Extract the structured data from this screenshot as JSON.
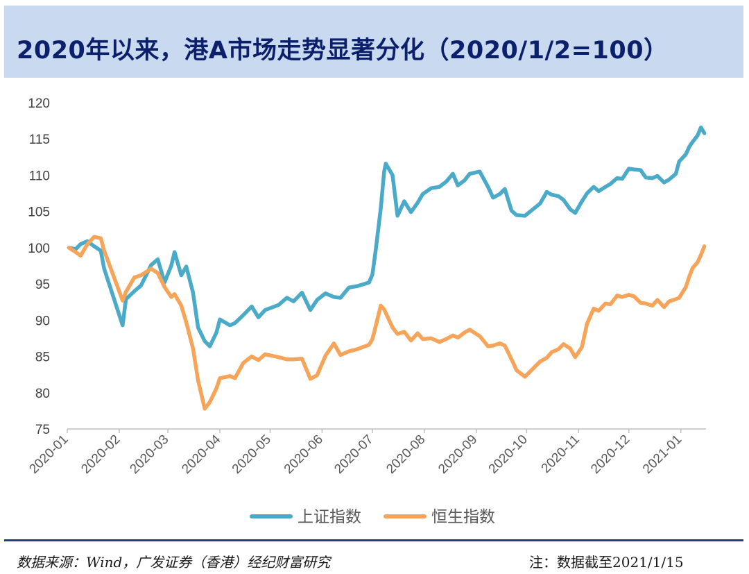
{
  "title": "2020年以来，港A市场走势显著分化（2020/1/2=100）",
  "footer": {
    "source": "数据来源：Wind，广发证券（香港）经纪财富研究",
    "note": "注：数据截至2021/1/15"
  },
  "colors": {
    "sse": "#4aaac8",
    "hsi": "#f6a45a",
    "title_bg": "#c9d9ef",
    "title_text": "#0b1f6b"
  },
  "chart_data": {
    "type": "line",
    "title": "",
    "xlabel": "",
    "ylabel": "",
    "ylim": [
      75,
      120
    ],
    "yticks": [
      "75",
      "80",
      "85",
      "90",
      "95",
      "100",
      "105",
      "110",
      "115",
      "120"
    ],
    "xlim": [
      "2020-01-01",
      "2021-01-16"
    ],
    "xticks": [
      "2020-01",
      "2020-02",
      "2020-03",
      "2020-04",
      "2020-05",
      "2020-06",
      "2020-07",
      "2020-08",
      "2020-09",
      "2020-10",
      "2020-11",
      "2020-12",
      "2021-01"
    ],
    "legend": "bottom",
    "series": [
      {
        "name": "上证指数",
        "color": "#4aaac8",
        "points": [
          [
            "2020-01-02",
            100.0
          ],
          [
            "2020-01-06",
            99.8
          ],
          [
            "2020-01-09",
            100.5
          ],
          [
            "2020-01-13",
            100.9
          ],
          [
            "2020-01-17",
            100.2
          ],
          [
            "2020-01-21",
            99.6
          ],
          [
            "2020-01-23",
            97.1
          ],
          [
            "2020-02-03",
            89.3
          ],
          [
            "2020-02-05",
            92.9
          ],
          [
            "2020-02-10",
            94.0
          ],
          [
            "2020-02-14",
            94.8
          ],
          [
            "2020-02-20",
            97.6
          ],
          [
            "2020-02-24",
            98.4
          ],
          [
            "2020-02-28",
            95.2
          ],
          [
            "2020-03-03",
            97.5
          ],
          [
            "2020-03-05",
            99.4
          ],
          [
            "2020-03-09",
            96.2
          ],
          [
            "2020-03-12",
            97.4
          ],
          [
            "2020-03-16",
            93.8
          ],
          [
            "2020-03-19",
            89.0
          ],
          [
            "2020-03-23",
            87.1
          ],
          [
            "2020-03-26",
            86.4
          ],
          [
            "2020-03-30",
            88.3
          ],
          [
            "2020-04-01",
            90.1
          ],
          [
            "2020-04-07",
            89.3
          ],
          [
            "2020-04-10",
            89.6
          ],
          [
            "2020-04-15",
            90.7
          ],
          [
            "2020-04-20",
            91.9
          ],
          [
            "2020-04-24",
            90.4
          ],
          [
            "2020-04-28",
            91.4
          ],
          [
            "2020-05-06",
            92.1
          ],
          [
            "2020-05-11",
            93.1
          ],
          [
            "2020-05-15",
            92.6
          ],
          [
            "2020-05-20",
            93.8
          ],
          [
            "2020-05-25",
            91.4
          ],
          [
            "2020-05-29",
            92.8
          ],
          [
            "2020-06-03",
            93.7
          ],
          [
            "2020-06-08",
            93.2
          ],
          [
            "2020-06-12",
            93.1
          ],
          [
            "2020-06-17",
            94.5
          ],
          [
            "2020-06-22",
            94.7
          ],
          [
            "2020-06-29",
            95.2
          ],
          [
            "2020-07-01",
            96.3
          ],
          [
            "2020-07-03",
            99.7
          ],
          [
            "2020-07-06",
            105.4
          ],
          [
            "2020-07-08",
            110.5
          ],
          [
            "2020-07-09",
            111.6
          ],
          [
            "2020-07-13",
            110.0
          ],
          [
            "2020-07-16",
            104.4
          ],
          [
            "2020-07-20",
            106.4
          ],
          [
            "2020-07-24",
            104.9
          ],
          [
            "2020-07-28",
            106.2
          ],
          [
            "2020-07-31",
            107.4
          ],
          [
            "2020-08-05",
            108.2
          ],
          [
            "2020-08-10",
            108.4
          ],
          [
            "2020-08-14",
            109.1
          ],
          [
            "2020-08-18",
            110.2
          ],
          [
            "2020-08-21",
            108.6
          ],
          [
            "2020-08-25",
            109.3
          ],
          [
            "2020-08-28",
            110.2
          ],
          [
            "2020-09-03",
            110.5
          ],
          [
            "2020-09-08",
            108.4
          ],
          [
            "2020-09-11",
            106.9
          ],
          [
            "2020-09-15",
            107.4
          ],
          [
            "2020-09-18",
            108.1
          ],
          [
            "2020-09-22",
            105.1
          ],
          [
            "2020-09-25",
            104.5
          ],
          [
            "2020-09-30",
            104.4
          ],
          [
            "2020-10-09",
            106.1
          ],
          [
            "2020-10-13",
            107.7
          ],
          [
            "2020-10-16",
            107.3
          ],
          [
            "2020-10-20",
            107.1
          ],
          [
            "2020-10-23",
            106.6
          ],
          [
            "2020-10-27",
            105.3
          ],
          [
            "2020-10-30",
            104.8
          ],
          [
            "2020-11-03",
            106.4
          ],
          [
            "2020-11-06",
            107.5
          ],
          [
            "2020-11-10",
            108.4
          ],
          [
            "2020-11-13",
            107.8
          ],
          [
            "2020-11-17",
            108.4
          ],
          [
            "2020-11-20",
            108.8
          ],
          [
            "2020-11-24",
            109.6
          ],
          [
            "2020-11-27",
            109.5
          ],
          [
            "2020-12-01",
            110.9
          ],
          [
            "2020-12-04",
            110.8
          ],
          [
            "2020-12-08",
            110.7
          ],
          [
            "2020-12-11",
            109.7
          ],
          [
            "2020-12-15",
            109.6
          ],
          [
            "2020-12-18",
            109.9
          ],
          [
            "2020-12-22",
            109.0
          ],
          [
            "2020-12-25",
            109.4
          ],
          [
            "2020-12-29",
            110.2
          ],
          [
            "2020-12-31",
            111.9
          ],
          [
            "2021-01-04",
            112.9
          ],
          [
            "2021-01-06",
            113.9
          ],
          [
            "2021-01-08",
            114.6
          ],
          [
            "2021-01-11",
            115.5
          ],
          [
            "2021-01-13",
            116.6
          ],
          [
            "2021-01-15",
            115.8
          ]
        ]
      },
      {
        "name": "恒生指数",
        "color": "#f6a45a",
        "points": [
          [
            "2020-01-02",
            100.0
          ],
          [
            "2020-01-06",
            99.4
          ],
          [
            "2020-01-09",
            98.9
          ],
          [
            "2020-01-13",
            100.5
          ],
          [
            "2020-01-17",
            101.5
          ],
          [
            "2020-01-21",
            101.3
          ],
          [
            "2020-01-23",
            99.6
          ],
          [
            "2020-02-03",
            92.7
          ],
          [
            "2020-02-05",
            93.9
          ],
          [
            "2020-02-10",
            95.9
          ],
          [
            "2020-02-14",
            96.2
          ],
          [
            "2020-02-20",
            97.1
          ],
          [
            "2020-02-24",
            96.5
          ],
          [
            "2020-02-28",
            94.6
          ],
          [
            "2020-03-03",
            93.2
          ],
          [
            "2020-03-05",
            93.6
          ],
          [
            "2020-03-09",
            92.0
          ],
          [
            "2020-03-12",
            89.7
          ],
          [
            "2020-03-16",
            86.1
          ],
          [
            "2020-03-19",
            81.7
          ],
          [
            "2020-03-23",
            77.8
          ],
          [
            "2020-03-26",
            78.7
          ],
          [
            "2020-03-30",
            80.6
          ],
          [
            "2020-04-01",
            82.0
          ],
          [
            "2020-04-07",
            82.3
          ],
          [
            "2020-04-10",
            82.0
          ],
          [
            "2020-04-15",
            84.1
          ],
          [
            "2020-04-20",
            85.0
          ],
          [
            "2020-04-24",
            84.5
          ],
          [
            "2020-04-28",
            85.3
          ],
          [
            "2020-05-06",
            84.9
          ],
          [
            "2020-05-11",
            84.6
          ],
          [
            "2020-05-15",
            84.6
          ],
          [
            "2020-05-20",
            84.7
          ],
          [
            "2020-05-25",
            81.9
          ],
          [
            "2020-05-29",
            82.4
          ],
          [
            "2020-06-03",
            85.1
          ],
          [
            "2020-06-08",
            86.8
          ],
          [
            "2020-06-12",
            85.2
          ],
          [
            "2020-06-17",
            85.7
          ],
          [
            "2020-06-22",
            86.0
          ],
          [
            "2020-06-29",
            86.6
          ],
          [
            "2020-07-01",
            87.4
          ],
          [
            "2020-07-03",
            89.2
          ],
          [
            "2020-07-06",
            92.0
          ],
          [
            "2020-07-08",
            91.5
          ],
          [
            "2020-07-09",
            91.0
          ],
          [
            "2020-07-13",
            89.0
          ],
          [
            "2020-07-16",
            88.1
          ],
          [
            "2020-07-20",
            88.4
          ],
          [
            "2020-07-24",
            87.2
          ],
          [
            "2020-07-28",
            88.2
          ],
          [
            "2020-07-31",
            87.4
          ],
          [
            "2020-08-05",
            87.5
          ],
          [
            "2020-08-10",
            87.0
          ],
          [
            "2020-08-14",
            87.4
          ],
          [
            "2020-08-18",
            87.9
          ],
          [
            "2020-08-21",
            87.6
          ],
          [
            "2020-08-25",
            88.3
          ],
          [
            "2020-08-28",
            88.7
          ],
          [
            "2020-09-03",
            87.8
          ],
          [
            "2020-09-08",
            86.4
          ],
          [
            "2020-09-11",
            86.5
          ],
          [
            "2020-09-15",
            86.8
          ],
          [
            "2020-09-18",
            86.5
          ],
          [
            "2020-09-22",
            84.6
          ],
          [
            "2020-09-25",
            83.1
          ],
          [
            "2020-09-30",
            82.2
          ],
          [
            "2020-10-09",
            84.3
          ],
          [
            "2020-10-13",
            84.8
          ],
          [
            "2020-10-16",
            85.6
          ],
          [
            "2020-10-20",
            86.0
          ],
          [
            "2020-10-23",
            86.7
          ],
          [
            "2020-10-27",
            86.1
          ],
          [
            "2020-10-30",
            84.9
          ],
          [
            "2020-11-03",
            86.3
          ],
          [
            "2020-11-06",
            89.5
          ],
          [
            "2020-11-10",
            91.6
          ],
          [
            "2020-11-13",
            91.3
          ],
          [
            "2020-11-17",
            92.3
          ],
          [
            "2020-11-20",
            92.2
          ],
          [
            "2020-11-24",
            93.4
          ],
          [
            "2020-11-27",
            93.2
          ],
          [
            "2020-12-01",
            93.5
          ],
          [
            "2020-12-04",
            93.3
          ],
          [
            "2020-12-08",
            92.4
          ],
          [
            "2020-12-11",
            92.3
          ],
          [
            "2020-12-15",
            92.0
          ],
          [
            "2020-12-18",
            92.8
          ],
          [
            "2020-12-22",
            91.8
          ],
          [
            "2020-12-25",
            92.6
          ],
          [
            "2020-12-29",
            92.9
          ],
          [
            "2020-12-31",
            93.1
          ],
          [
            "2021-01-04",
            94.6
          ],
          [
            "2021-01-06",
            96.0
          ],
          [
            "2021-01-08",
            97.2
          ],
          [
            "2021-01-11",
            98.0
          ],
          [
            "2021-01-13",
            99.0
          ],
          [
            "2021-01-15",
            100.2
          ]
        ]
      }
    ]
  }
}
